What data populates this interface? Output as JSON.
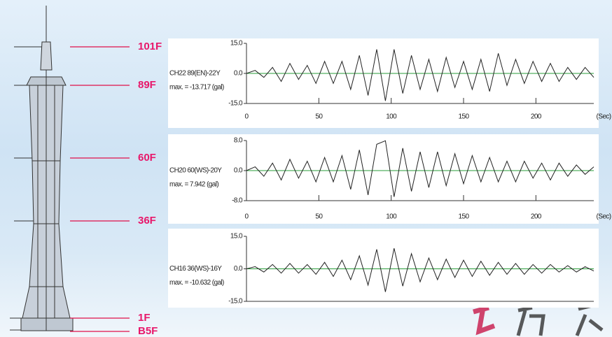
{
  "floor_labels": [
    "101F",
    "89F",
    "60F",
    "36F",
    "1F",
    "B5F"
  ],
  "chart_data": [
    {
      "type": "line",
      "title": "CH22 89(EN)-22Y",
      "subtitle": "max. = -13.717 (gal)",
      "xlabel": "(Sec)",
      "x": [
        0,
        6,
        12,
        18,
        24,
        30,
        36,
        42,
        48,
        54,
        60,
        66,
        72,
        78,
        84,
        90,
        96,
        102,
        108,
        114,
        120,
        126,
        132,
        138,
        144,
        150,
        156,
        162,
        168,
        174,
        180,
        186,
        192,
        198,
        204,
        210,
        216,
        222,
        228,
        234,
        240
      ],
      "series": [
        {
          "name": "CH22",
          "color": "#222222",
          "values": [
            0,
            1.5,
            -2,
            3,
            -4,
            5,
            -3,
            4,
            -5,
            6,
            -5,
            6,
            -8,
            9,
            -11,
            12,
            -13.7,
            12,
            -10,
            9,
            -8,
            7,
            -9,
            8,
            -7,
            6,
            -8,
            7,
            -9,
            10,
            -6,
            7,
            -5,
            6,
            -4,
            5,
            -4,
            3,
            -3,
            3,
            -2
          ]
        }
      ],
      "xlim": [
        0,
        240
      ],
      "xticks": [
        0,
        50,
        100,
        150,
        200
      ],
      "ylim": [
        -15,
        15
      ],
      "yticks": [
        {
          "value": 15,
          "label": "15.0"
        },
        {
          "value": 0,
          "label": "0.0"
        },
        {
          "value": -15,
          "label": "-15.0"
        }
      ]
    },
    {
      "type": "line",
      "title": "CH20 60(WS)-20Y",
      "subtitle": "max. = 7.942 (gal)",
      "xlabel": "(Sec)",
      "x": [
        0,
        6,
        12,
        18,
        24,
        30,
        36,
        42,
        48,
        54,
        60,
        66,
        72,
        78,
        84,
        90,
        96,
        102,
        108,
        114,
        120,
        126,
        132,
        138,
        144,
        150,
        156,
        162,
        168,
        174,
        180,
        186,
        192,
        198,
        204,
        210,
        216,
        222,
        228,
        234,
        240
      ],
      "series": [
        {
          "name": "CH20",
          "color": "#222222",
          "values": [
            0,
            1,
            -1.5,
            2,
            -2.5,
            3,
            -2,
            2.5,
            -3,
            3.5,
            -3,
            4,
            -5,
            5.5,
            -6.5,
            7,
            7.942,
            -7,
            6,
            -5.5,
            5,
            -4.5,
            5,
            -4,
            4.5,
            -3.5,
            4,
            -3,
            3.5,
            -3,
            2.5,
            -3,
            2.5,
            -2,
            2,
            -2.5,
            2,
            -1.5,
            1.5,
            -1,
            1
          ]
        }
      ],
      "xlim": [
        0,
        240
      ],
      "xticks": [
        0,
        50,
        100,
        150,
        200
      ],
      "ylim": [
        -8,
        8
      ],
      "yticks": [
        {
          "value": 8,
          "label": "8.0"
        },
        {
          "value": 0,
          "label": "0.0"
        },
        {
          "value": -8,
          "label": "-8.0"
        }
      ]
    },
    {
      "type": "line",
      "title": "CH16 36(WS)-16Y",
      "subtitle": "max. = -10.632 (gal)",
      "x": [
        0,
        6,
        12,
        18,
        24,
        30,
        36,
        42,
        48,
        54,
        60,
        66,
        72,
        78,
        84,
        90,
        96,
        102,
        108,
        114,
        120,
        126,
        132,
        138,
        144,
        150,
        156,
        162,
        168,
        174,
        180,
        186,
        192,
        198,
        204,
        210,
        216,
        222,
        228,
        234,
        240
      ],
      "series": [
        {
          "name": "CH16",
          "color": "#222222",
          "values": [
            0,
            1,
            -1.5,
            2,
            -2,
            2.5,
            -2,
            2,
            -2.5,
            3,
            -3.5,
            4,
            -5,
            6,
            -7.5,
            9,
            -10.632,
            9.5,
            -8,
            7,
            -6,
            5,
            -5,
            4.5,
            -4,
            4,
            -3.5,
            3.5,
            -3,
            3,
            -2.5,
            2.5,
            -2.5,
            2,
            -2,
            2,
            -1.5,
            1.5,
            -1.5,
            1,
            -1
          ]
        }
      ],
      "xlim": [
        0,
        240
      ],
      "ylim": [
        -15,
        15
      ],
      "yticks": [
        {
          "value": 15,
          "label": "15.0"
        },
        {
          "value": 0,
          "label": "0.0"
        },
        {
          "value": -15,
          "label": "-15.0"
        }
      ]
    }
  ]
}
